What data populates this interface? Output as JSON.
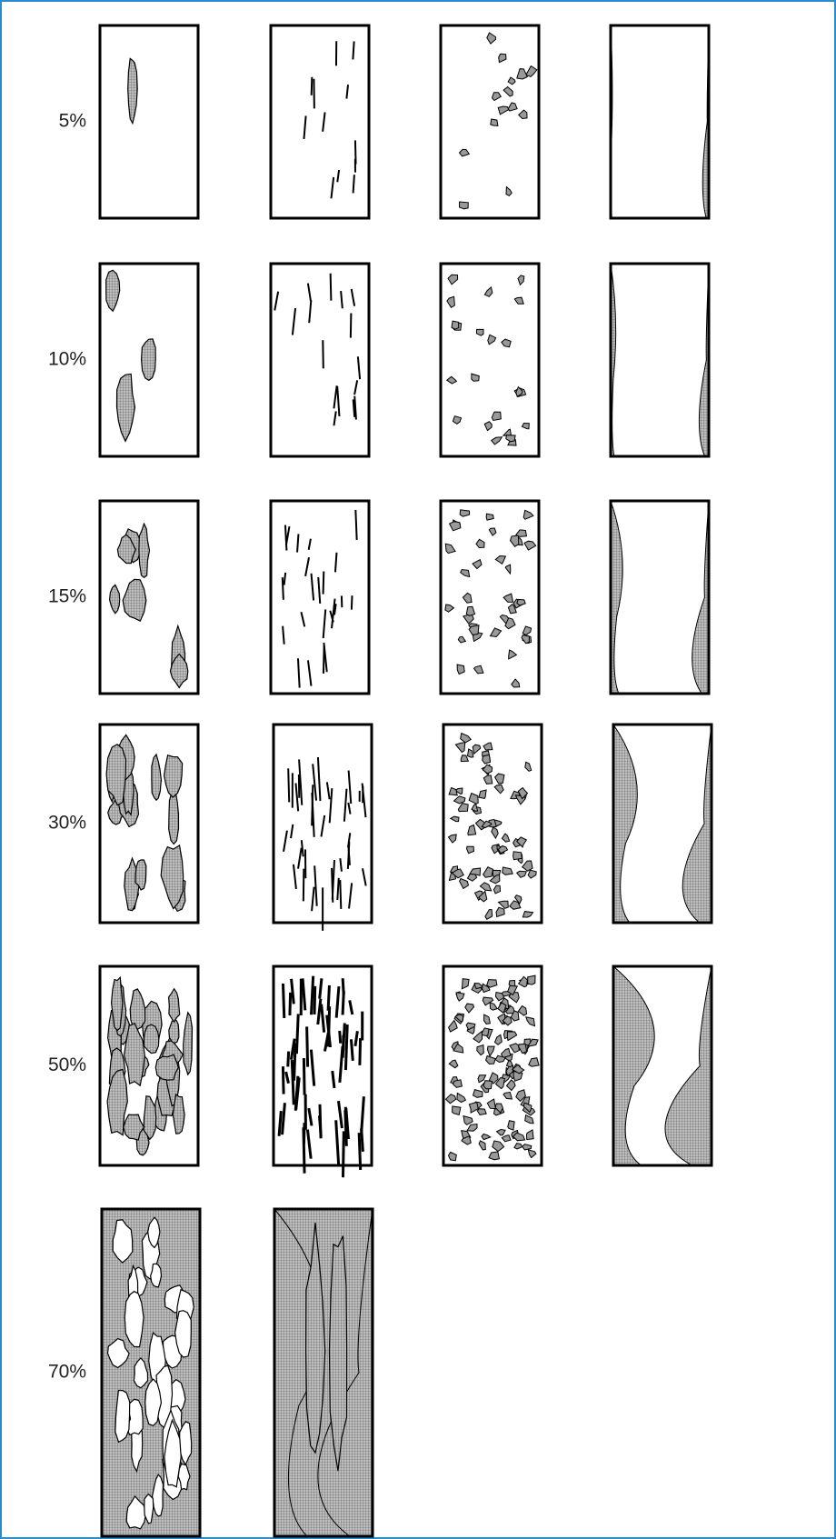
{
  "rows": [
    {
      "label": "5%"
    },
    {
      "label": "10%"
    },
    {
      "label": "15%"
    },
    {
      "label": "30%"
    },
    {
      "label": "50%"
    },
    {
      "label": "70%"
    }
  ]
}
